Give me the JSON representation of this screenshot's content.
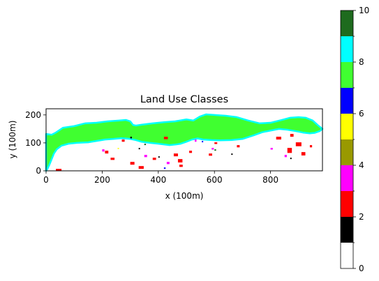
{
  "chart_data": {
    "type": "heatmap",
    "title": "Land Use Classes",
    "xlabel": "x (100m)",
    "ylabel": "y (100m)",
    "xlim": [
      0,
      985
    ],
    "ylim": [
      0,
      222
    ],
    "x_ticks": [
      0,
      200,
      400,
      600,
      800
    ],
    "y_ticks": [
      0,
      100,
      200
    ],
    "colorbar": {
      "range": [
        0,
        10
      ],
      "ticks": [
        0,
        2,
        4,
        6,
        8,
        10
      ],
      "classes": [
        {
          "from": 0,
          "to": 1,
          "color": "#ffffff"
        },
        {
          "from": 1,
          "to": 2,
          "color": "#000000"
        },
        {
          "from": 2,
          "to": 3,
          "color": "#ff0000"
        },
        {
          "from": 3,
          "to": 4,
          "color": "#ff00ff"
        },
        {
          "from": 4,
          "to": 5,
          "color": "#999900"
        },
        {
          "from": 5,
          "to": 6,
          "color": "#ffff00"
        },
        {
          "from": 6,
          "to": 7,
          "color": "#0000ff"
        },
        {
          "from": 7,
          "to": 8,
          "color": "#40ff30"
        },
        {
          "from": 8,
          "to": 9,
          "color": "#00ffff"
        },
        {
          "from": 9,
          "to": 10,
          "color": "#1e6b1e"
        }
      ]
    },
    "regions": {
      "land_outline_class": 8,
      "land_fill_class": 7,
      "land_outline": [
        [
          0,
          90
        ],
        [
          20,
          93
        ],
        [
          35,
          85
        ],
        [
          60,
          68
        ],
        [
          100,
          62
        ],
        [
          140,
          52
        ],
        [
          180,
          50
        ],
        [
          220,
          45
        ],
        [
          260,
          42
        ],
        [
          285,
          40
        ],
        [
          300,
          45
        ],
        [
          310,
          58
        ],
        [
          320,
          60
        ],
        [
          340,
          57
        ],
        [
          380,
          52
        ],
        [
          420,
          48
        ],
        [
          460,
          45
        ],
        [
          500,
          38
        ],
        [
          525,
          42
        ],
        [
          548,
          28
        ],
        [
          570,
          20
        ],
        [
          600,
          22
        ],
        [
          640,
          25
        ],
        [
          680,
          30
        ],
        [
          720,
          42
        ],
        [
          760,
          52
        ],
        [
          800,
          50
        ],
        [
          840,
          40
        ],
        [
          870,
          32
        ],
        [
          900,
          30
        ],
        [
          925,
          32
        ],
        [
          950,
          42
        ],
        [
          970,
          60
        ],
        [
          985,
          72
        ],
        [
          975,
          80
        ],
        [
          958,
          86
        ],
        [
          940,
          88
        ],
        [
          915,
          85
        ],
        [
          890,
          80
        ],
        [
          860,
          75
        ],
        [
          830,
          72
        ],
        [
          800,
          78
        ],
        [
          770,
          84
        ],
        [
          740,
          95
        ],
        [
          700,
          108
        ],
        [
          660,
          112
        ],
        [
          620,
          113
        ],
        [
          590,
          112
        ],
        [
          560,
          110
        ],
        [
          540,
          106
        ],
        [
          520,
          110
        ],
        [
          500,
          118
        ],
        [
          480,
          125
        ],
        [
          460,
          128
        ],
        [
          440,
          130
        ],
        [
          400,
          125
        ],
        [
          370,
          122
        ],
        [
          340,
          118
        ],
        [
          320,
          112
        ],
        [
          300,
          108
        ],
        [
          270,
          105
        ],
        [
          240,
          108
        ],
        [
          210,
          110
        ],
        [
          180,
          115
        ],
        [
          150,
          120
        ],
        [
          110,
          122
        ],
        [
          80,
          125
        ],
        [
          55,
          132
        ],
        [
          38,
          145
        ],
        [
          28,
          160
        ],
        [
          20,
          180
        ],
        [
          12,
          200
        ],
        [
          5,
          215
        ],
        [
          0,
          222
        ]
      ],
      "patches": [
        {
          "class": 2,
          "x": 35,
          "y": 215,
          "w": 20,
          "h": 7
        },
        {
          "class": 2,
          "x": 210,
          "y": 150,
          "w": 12,
          "h": 10
        },
        {
          "class": 2,
          "x": 230,
          "y": 175,
          "w": 14,
          "h": 8
        },
        {
          "class": 2,
          "x": 270,
          "y": 110,
          "w": 10,
          "h": 8
        },
        {
          "class": 2,
          "x": 300,
          "y": 190,
          "w": 15,
          "h": 10
        },
        {
          "class": 2,
          "x": 330,
          "y": 205,
          "w": 18,
          "h": 10
        },
        {
          "class": 2,
          "x": 380,
          "y": 175,
          "w": 12,
          "h": 8
        },
        {
          "class": 2,
          "x": 420,
          "y": 100,
          "w": 14,
          "h": 9
        },
        {
          "class": 2,
          "x": 455,
          "y": 160,
          "w": 15,
          "h": 10
        },
        {
          "class": 2,
          "x": 470,
          "y": 180,
          "w": 16,
          "h": 12
        },
        {
          "class": 2,
          "x": 475,
          "y": 200,
          "w": 12,
          "h": 8
        },
        {
          "class": 2,
          "x": 510,
          "y": 150,
          "w": 10,
          "h": 8
        },
        {
          "class": 2,
          "x": 580,
          "y": 160,
          "w": 12,
          "h": 8
        },
        {
          "class": 2,
          "x": 600,
          "y": 120,
          "w": 10,
          "h": 6
        },
        {
          "class": 2,
          "x": 680,
          "y": 130,
          "w": 10,
          "h": 8
        },
        {
          "class": 2,
          "x": 820,
          "y": 100,
          "w": 18,
          "h": 10
        },
        {
          "class": 2,
          "x": 860,
          "y": 140,
          "w": 16,
          "h": 18
        },
        {
          "class": 2,
          "x": 890,
          "y": 120,
          "w": 20,
          "h": 14
        },
        {
          "class": 2,
          "x": 910,
          "y": 155,
          "w": 14,
          "h": 12
        },
        {
          "class": 2,
          "x": 870,
          "y": 90,
          "w": 12,
          "h": 10
        },
        {
          "class": 2,
          "x": 940,
          "y": 130,
          "w": 8,
          "h": 8
        },
        {
          "class": 3,
          "x": 200,
          "y": 145,
          "w": 8,
          "h": 8
        },
        {
          "class": 3,
          "x": 350,
          "y": 165,
          "w": 10,
          "h": 8
        },
        {
          "class": 3,
          "x": 430,
          "y": 190,
          "w": 10,
          "h": 8
        },
        {
          "class": 3,
          "x": 530,
          "y": 110,
          "w": 6,
          "h": 8
        },
        {
          "class": 3,
          "x": 590,
          "y": 140,
          "w": 8,
          "h": 6
        },
        {
          "class": 3,
          "x": 800,
          "y": 140,
          "w": 8,
          "h": 6
        },
        {
          "class": 3,
          "x": 850,
          "y": 165,
          "w": 8,
          "h": 8
        },
        {
          "class": 6,
          "x": 420,
          "y": 210,
          "w": 6,
          "h": 5
        },
        {
          "class": 6,
          "x": 555,
          "y": 115,
          "w": 5,
          "h": 5
        },
        {
          "class": 1,
          "x": 300,
          "y": 100,
          "w": 6,
          "h": 6
        },
        {
          "class": 1,
          "x": 330,
          "y": 140,
          "w": 5,
          "h": 5
        },
        {
          "class": 1,
          "x": 400,
          "y": 170,
          "w": 5,
          "h": 5
        },
        {
          "class": 1,
          "x": 660,
          "y": 160,
          "w": 5,
          "h": 5
        },
        {
          "class": 1,
          "x": 870,
          "y": 175,
          "w": 5,
          "h": 5
        },
        {
          "class": 9,
          "x": 350,
          "y": 125,
          "w": 6,
          "h": 5
        },
        {
          "class": 9,
          "x": 600,
          "y": 145,
          "w": 6,
          "h": 5
        },
        {
          "class": 5,
          "x": 255,
          "y": 140,
          "w": 5,
          "h": 4
        }
      ]
    }
  }
}
